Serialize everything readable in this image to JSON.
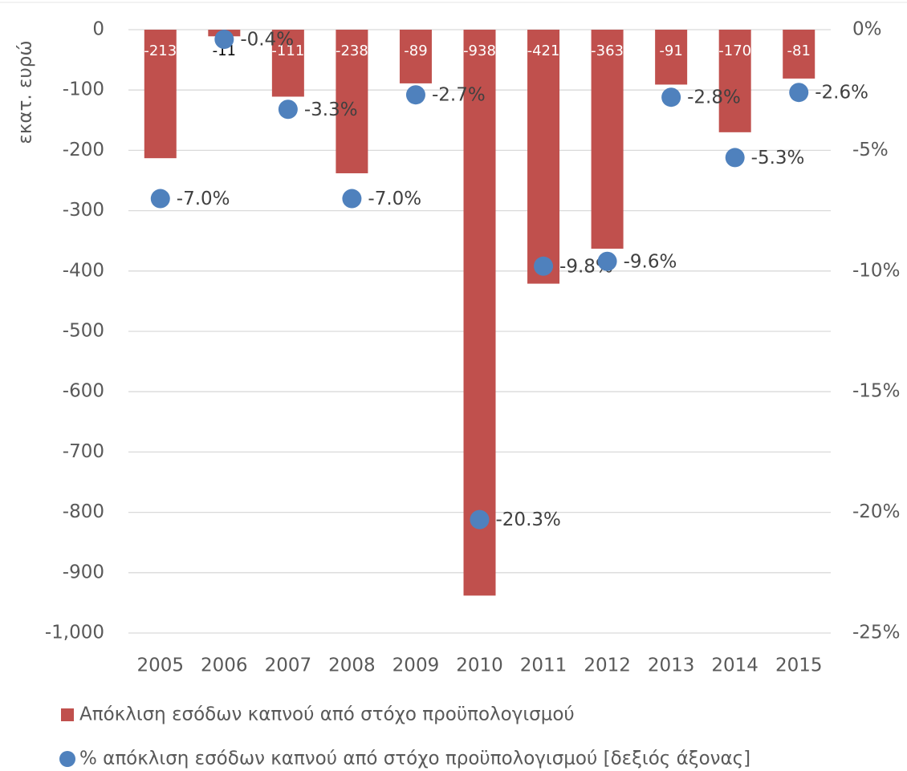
{
  "chart_data": {
    "type": "bar",
    "y_label": "εκατ. ευρώ",
    "categories": [
      "2005",
      "2006",
      "2007",
      "2008",
      "2009",
      "2010",
      "2011",
      "2012",
      "2013",
      "2014",
      "2015"
    ],
    "series": [
      {
        "name": "Απόκλιση εσόδων καπνού από στόχο προϋπολογισμού",
        "type": "bar",
        "color": "#c0504d",
        "values": [
          -213,
          -11,
          -111,
          -238,
          -89,
          -938,
          -421,
          -363,
          -91,
          -170,
          -81
        ]
      },
      {
        "name": "% απόκλιση εσόδων καπνού από στόχο προϋπολογισμού [δεξιός άξονας]",
        "type": "scatter",
        "color": "#4f81bd",
        "axis": "y2",
        "values": [
          -7.0,
          -0.4,
          -3.3,
          -7.0,
          -2.7,
          -20.3,
          -9.8,
          -9.6,
          -2.8,
          -5.3,
          -2.6
        ],
        "value_labels": [
          "-7.0%",
          "-0.4%",
          "-3.3%",
          "-7.0%",
          "-2.7%",
          "-20.3%",
          "-9.8%",
          "-9.6%",
          "-2.8%",
          "-5.3%",
          "-2.6%"
        ]
      }
    ],
    "ylim": [
      -1000,
      0
    ],
    "yticks": [
      0,
      -100,
      -200,
      -300,
      -400,
      -500,
      -600,
      -700,
      -800,
      -900,
      {
        "value": -1000,
        "label": "-1,000"
      }
    ],
    "y2lim": [
      -25,
      0
    ],
    "y2ticks": [
      {
        "value": 0,
        "label": "0%"
      },
      {
        "value": -5,
        "label": "-5%"
      },
      {
        "value": -10,
        "label": "-10%"
      },
      {
        "value": -15,
        "label": "-15%"
      },
      {
        "value": -20,
        "label": "-20%"
      },
      {
        "value": -25,
        "label": "-25%"
      }
    ],
    "grid": true,
    "legend": "bottom"
  }
}
